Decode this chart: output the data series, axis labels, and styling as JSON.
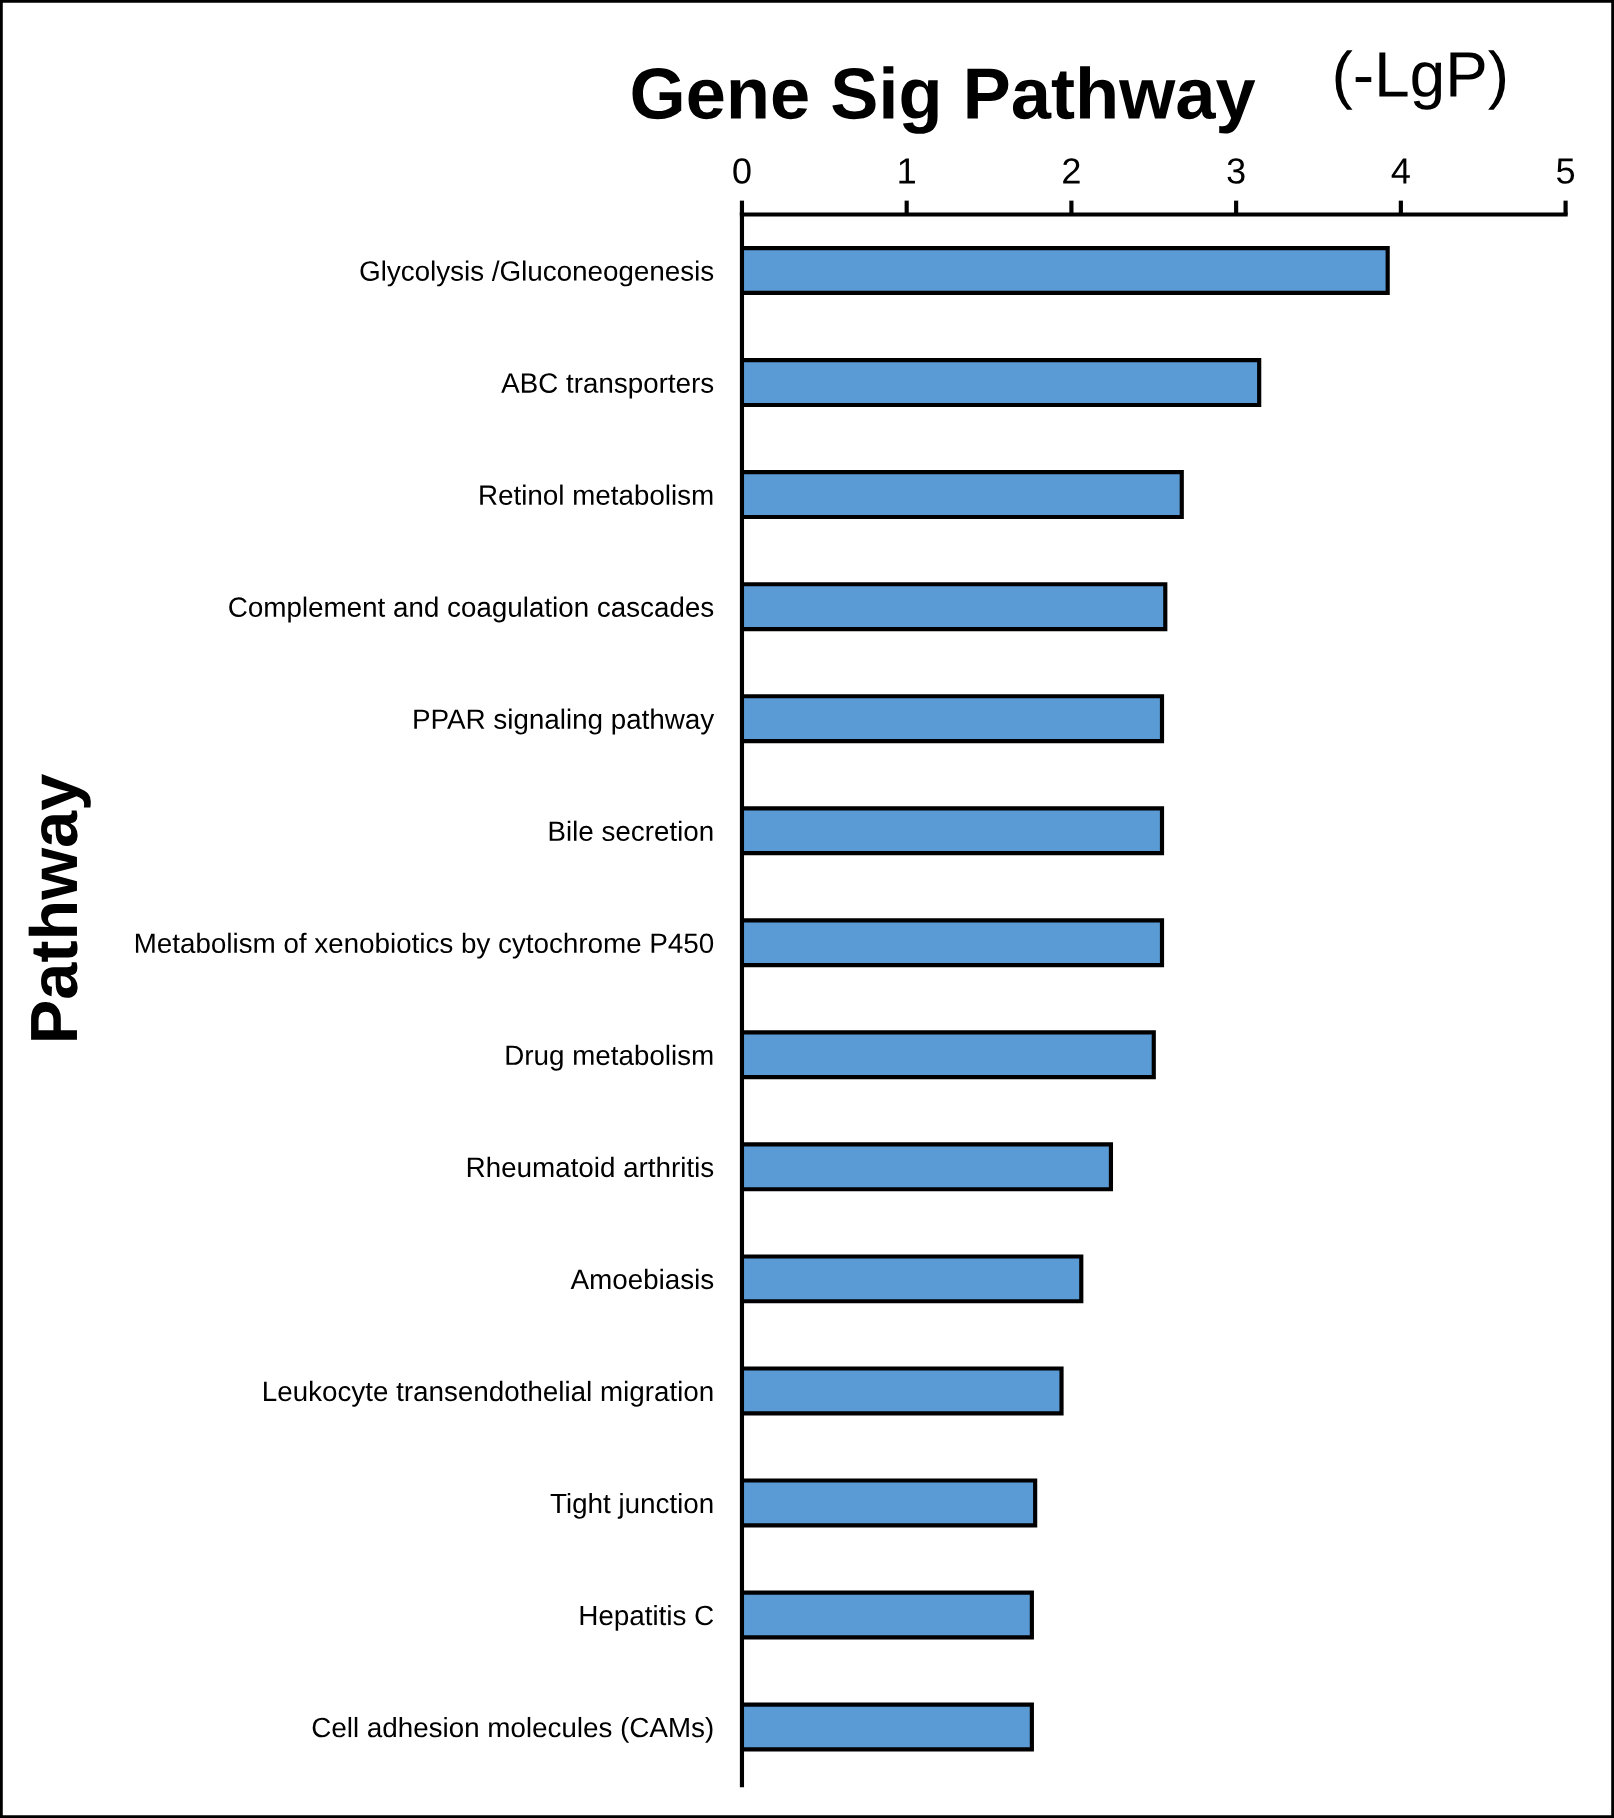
{
  "chart_data": {
    "type": "bar",
    "orientation": "horizontal",
    "title": "Gene Sig Pathway",
    "xlabel": "(-LgP)",
    "ylabel": "Pathway",
    "categories": [
      "Glycolysis /Gluconeogenesis",
      "ABC transporters",
      "Retinol metabolism",
      "Complement and coagulation cascades",
      "PPAR signaling pathway",
      "Bile secretion",
      "Metabolism of xenobiotics by cytochrome P450",
      "Drug metabolism",
      "Rheumatoid arthritis",
      "Amoebiasis",
      "Leukocyte transendothelial migration",
      "Tight junction",
      "Hepatitis C",
      "Cell adhesion molecules (CAMs)"
    ],
    "values": [
      3.92,
      3.14,
      2.67,
      2.57,
      2.55,
      2.55,
      2.55,
      2.5,
      2.24,
      2.06,
      1.94,
      1.78,
      1.76,
      1.76
    ],
    "color": "#5b9bd5",
    "xlim": [
      0,
      5
    ],
    "xticks": [
      0,
      1,
      2,
      3,
      4,
      5
    ],
    "grid": false,
    "legend": false
  }
}
